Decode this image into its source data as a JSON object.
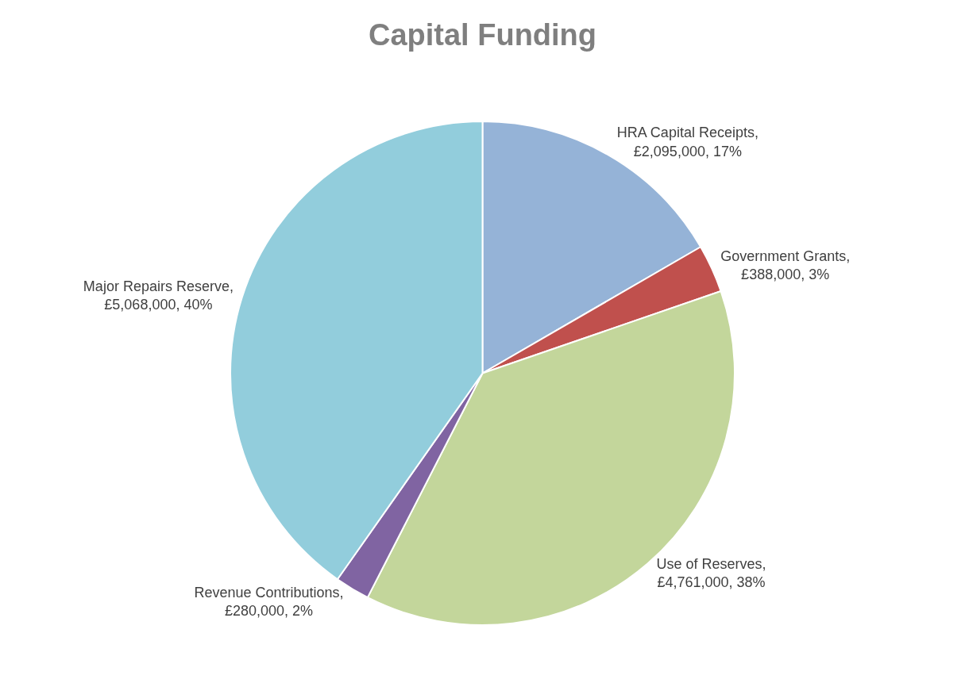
{
  "chart_data": {
    "type": "pie",
    "title": "Capital Funding",
    "categories": [
      "HRA Capital Receipts",
      "Government Grants",
      "Use of Reserves",
      "Revenue Contributions",
      "Major Repairs Reserve"
    ],
    "values": [
      2095000,
      388000,
      4761000,
      280000,
      5068000
    ],
    "value_labels": [
      ", £2,095,000, 17%",
      ", £388,000, 3%",
      ", £4,761,000, 38%",
      ", £280,000, 2%",
      ", £5,068,000, 40%"
    ],
    "colors": [
      "#95b3d7",
      "#c0504d",
      "#c3d69b",
      "#8064a2",
      "#92cddc"
    ],
    "legend": false
  }
}
